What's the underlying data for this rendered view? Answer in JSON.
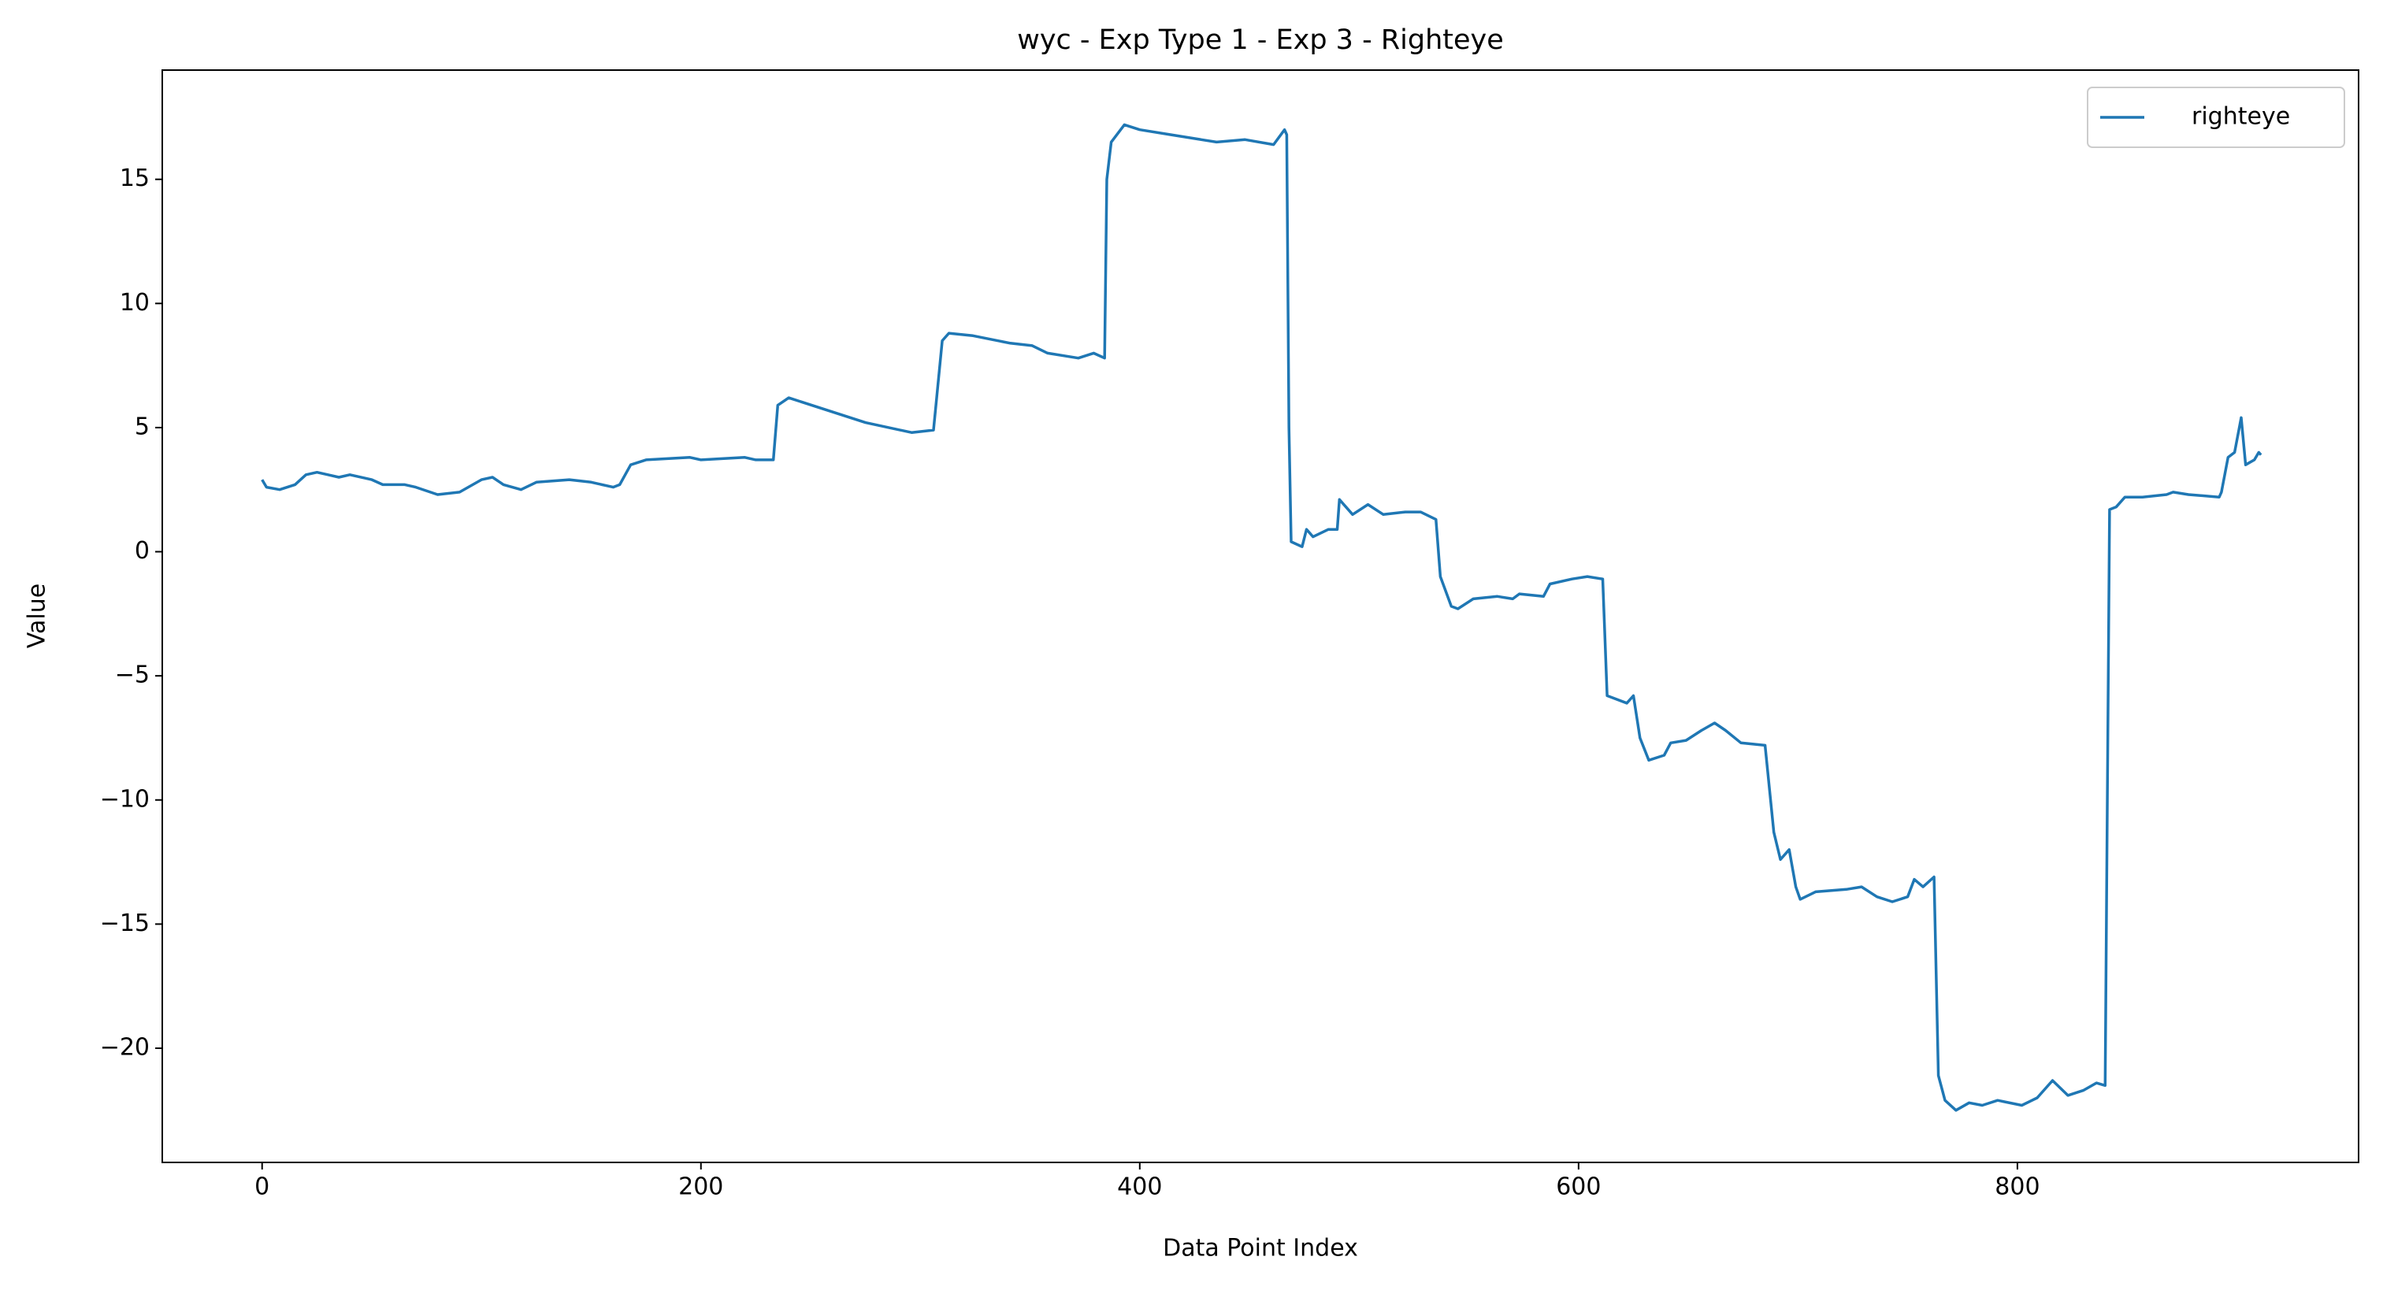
{
  "chart_data": {
    "type": "line",
    "title": "wyc - Exp Type 1 - Exp 3 - Righteye",
    "xlabel": "Data Point Index",
    "ylabel": "Value",
    "xlim": [
      -45.5,
      955.5
    ],
    "xticks": [
      0,
      200,
      400,
      600,
      800
    ],
    "ylim": [
      -24.6,
      19.4
    ],
    "yticks": [
      {
        "value": -20,
        "label": "−20"
      },
      {
        "value": -15,
        "label": "−15"
      },
      {
        "value": -10,
        "label": "−10"
      },
      {
        "value": -5,
        "label": "−5"
      },
      0,
      5,
      10,
      15
    ],
    "legend": "upper right",
    "grid": false,
    "series": [
      {
        "name": "righteye",
        "color": "#1f77b4",
        "x": [
          0,
          2,
          8,
          15,
          20,
          25,
          30,
          35,
          40,
          50,
          55,
          65,
          70,
          80,
          90,
          100,
          105,
          110,
          118,
          125,
          140,
          150,
          160,
          163,
          168,
          175,
          195,
          200,
          220,
          225,
          233,
          235,
          240,
          275,
          296,
          306,
          310,
          313,
          324,
          341,
          351,
          358,
          372,
          379,
          384,
          385,
          387,
          393,
          400,
          414,
          428,
          435,
          448,
          461,
          466,
          467,
          468,
          469,
          474,
          476,
          479,
          486,
          490,
          491,
          497,
          504,
          511,
          521,
          528,
          535,
          537,
          542,
          545,
          552,
          563,
          570,
          573,
          584,
          587,
          597,
          604,
          611,
          613,
          622,
          625,
          628,
          632,
          639,
          642,
          649,
          656,
          662,
          667,
          674,
          685,
          689,
          692,
          696,
          699,
          701,
          708,
          722,
          729,
          736,
          743,
          750,
          753,
          757,
          762,
          764,
          767,
          772,
          778,
          784,
          791,
          802,
          809,
          816,
          823,
          830,
          836,
          840,
          842,
          845,
          849,
          857,
          868,
          871,
          878,
          892,
          893,
          896,
          899,
          902,
          904,
          908,
          910,
          911
        ],
        "values": [
          2.9,
          2.6,
          2.5,
          2.7,
          3.1,
          3.2,
          3.1,
          3.0,
          3.1,
          2.9,
          2.7,
          2.7,
          2.6,
          2.3,
          2.4,
          2.9,
          3.0,
          2.7,
          2.5,
          2.8,
          2.9,
          2.8,
          2.6,
          2.7,
          3.5,
          3.7,
          3.8,
          3.7,
          3.8,
          3.7,
          3.7,
          5.9,
          6.2,
          5.2,
          4.8,
          4.9,
          8.5,
          8.8,
          8.7,
          8.4,
          8.3,
          8.0,
          7.8,
          8.0,
          7.8,
          15.0,
          16.5,
          17.2,
          17.0,
          16.8,
          16.6,
          16.5,
          16.6,
          16.4,
          17.0,
          16.8,
          5.0,
          0.4,
          0.2,
          0.9,
          0.6,
          0.9,
          0.9,
          2.1,
          1.5,
          1.9,
          1.5,
          1.6,
          1.6,
          1.3,
          -1.0,
          -2.2,
          -2.3,
          -1.9,
          -1.8,
          -1.9,
          -1.7,
          -1.8,
          -1.3,
          -1.1,
          -1.0,
          -1.1,
          -5.8,
          -6.1,
          -5.8,
          -7.5,
          -8.4,
          -8.2,
          -7.7,
          -7.6,
          -7.2,
          -6.9,
          -7.2,
          -7.7,
          -7.8,
          -11.3,
          -12.4,
          -12.0,
          -13.5,
          -14.0,
          -13.7,
          -13.6,
          -13.5,
          -13.9,
          -14.1,
          -13.9,
          -13.2,
          -13.5,
          -13.1,
          -21.1,
          -22.1,
          -22.5,
          -22.2,
          -22.3,
          -22.1,
          -22.3,
          -22.0,
          -21.3,
          -21.9,
          -21.7,
          -21.4,
          -21.5,
          1.7,
          1.8,
          2.2,
          2.2,
          2.3,
          2.4,
          2.3,
          2.2,
          2.4,
          3.8,
          4.0,
          5.4,
          3.5,
          3.7,
          4.0,
          3.9
        ]
      }
    ]
  }
}
